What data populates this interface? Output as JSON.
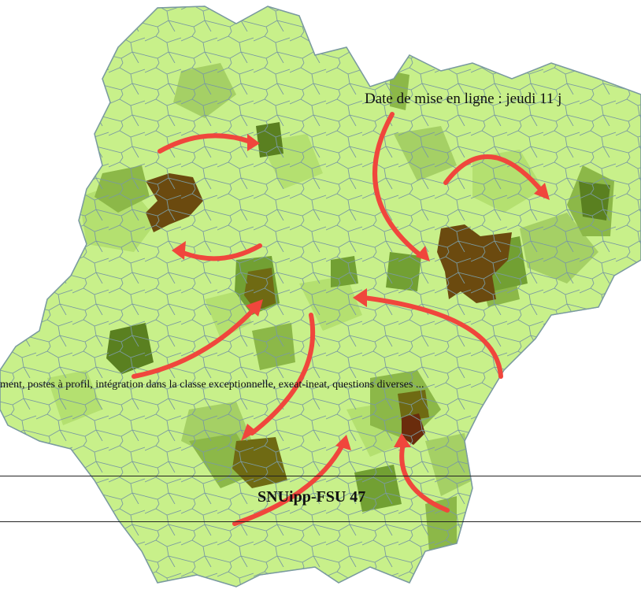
{
  "article": {
    "date_line": "Date de mise en ligne : jeudi 11 j",
    "description": "ment, postes à profil, intégration dans la classe exceptionnelle, exeat-ineat, questions diverses ..."
  },
  "footer": {
    "title": "SNUipp-FSU 47"
  },
  "map_colors": {
    "pale": "#c8f08a",
    "light": "#b4e070",
    "medium_light": "#a5d065",
    "medium": "#8cb848",
    "medium_dark": "#72a033",
    "dark": "#5a8020",
    "olive": "#6f6a13",
    "brown": "#6b4a0f",
    "dark_brown": "#6a2c0c",
    "border": "#7a9aa0",
    "arrow": "#f0463c"
  }
}
